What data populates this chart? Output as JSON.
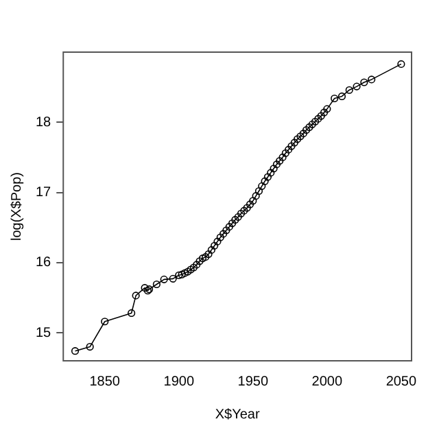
{
  "chart_data": {
    "type": "line",
    "xlabel": "X$Year",
    "ylabel": "log(X$Pop)",
    "x": [
      1830,
      1840,
      1850,
      1868,
      1871,
      1877,
      1879,
      1880,
      1885,
      1890,
      1896,
      1900,
      1902,
      1904,
      1906,
      1908,
      1910,
      1912,
      1914,
      1916,
      1918,
      1920,
      1922,
      1924,
      1926,
      1928,
      1930,
      1932,
      1934,
      1936,
      1938,
      1940,
      1942,
      1944,
      1946,
      1948,
      1950,
      1952,
      1954,
      1956,
      1958,
      1960,
      1962,
      1964,
      1966,
      1968,
      1970,
      1972,
      1974,
      1976,
      1978,
      1980,
      1982,
      1984,
      1986,
      1988,
      1990,
      1992,
      1994,
      1996,
      1998,
      2000,
      2005,
      2010,
      2015,
      2020,
      2025,
      2030,
      2050
    ],
    "series": [
      {
        "color": "#000000",
        "values": [
          14.74,
          14.8,
          15.16,
          15.28,
          15.53,
          15.64,
          15.6,
          15.62,
          15.69,
          15.76,
          15.77,
          15.82,
          15.83,
          15.85,
          15.87,
          15.9,
          15.93,
          15.97,
          16.02,
          16.06,
          16.08,
          16.12,
          16.18,
          16.24,
          16.3,
          16.36,
          16.41,
          16.46,
          16.51,
          16.56,
          16.61,
          16.65,
          16.7,
          16.74,
          16.78,
          16.83,
          16.88,
          16.95,
          17.02,
          17.09,
          17.16,
          17.22,
          17.28,
          17.34,
          17.4,
          17.45,
          17.5,
          17.56,
          17.61,
          17.66,
          17.71,
          17.76,
          17.8,
          17.84,
          17.89,
          17.93,
          17.97,
          18.01,
          18.05,
          18.09,
          18.14,
          18.19,
          18.34,
          18.37,
          18.46,
          18.51,
          18.57,
          18.61,
          18.83
        ]
      }
    ],
    "xlim": [
      1822,
      2057
    ],
    "xticks": [
      1850,
      1900,
      1950,
      2000,
      2050
    ],
    "ylim": [
      14.6,
      19.0
    ],
    "yticks": [
      15,
      16,
      17,
      18
    ],
    "marker": "circle",
    "line_style": "solid",
    "grid": false,
    "legend": false
  }
}
